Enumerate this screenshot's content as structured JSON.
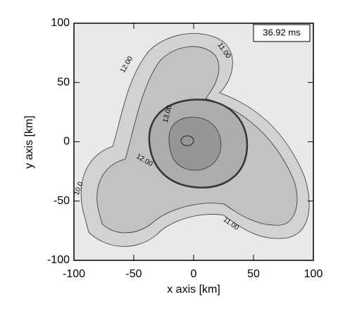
{
  "chart_data": {
    "type": "contour",
    "xlabel": "x axis [km]",
    "ylabel": "y axis [km]",
    "annotation": "36.92 ms",
    "xlim": [
      -100,
      100
    ],
    "ylim": [
      -100,
      100
    ],
    "xticks": [
      -100,
      -50,
      0,
      50,
      100
    ],
    "yticks": [
      -100,
      -50,
      0,
      50,
      100
    ],
    "background": "#e9e9e9",
    "levels": [
      {
        "value": 10,
        "label": "10.0"
      },
      {
        "value": 11,
        "label": "11.00"
      },
      {
        "value": 12,
        "label": "12.00"
      },
      {
        "value": 13,
        "label": "13.00"
      }
    ],
    "colors": [
      "#d2d2d2",
      "#c2c2c2",
      "#adadad",
      "#969696"
    ]
  }
}
